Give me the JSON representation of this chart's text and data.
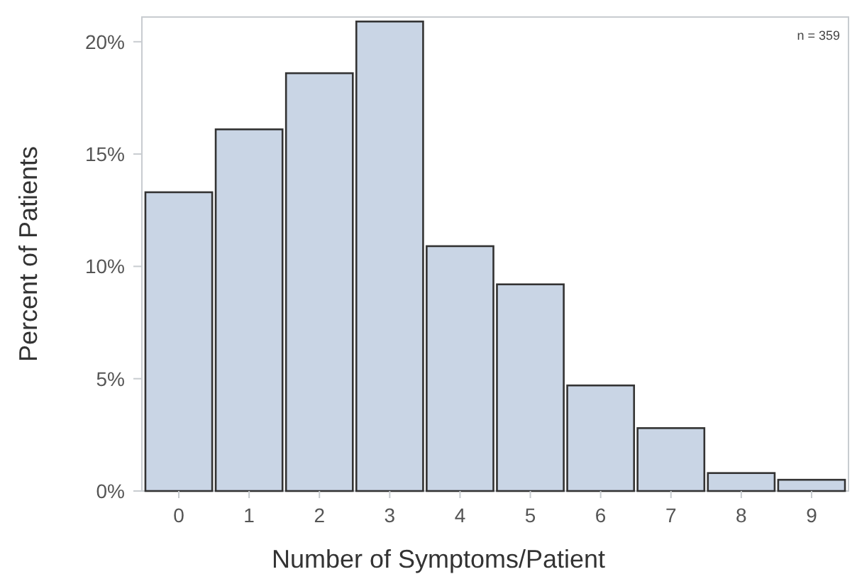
{
  "chart_data": {
    "type": "bar",
    "xlabel": "Number of Symptoms/Patient",
    "ylabel": "Percent of Patients",
    "categories": [
      "0",
      "1",
      "2",
      "3",
      "4",
      "5",
      "6",
      "7",
      "8",
      "9"
    ],
    "values": [
      13.3,
      16.1,
      18.6,
      20.9,
      10.9,
      9.2,
      4.7,
      2.8,
      0.8,
      0.5
    ],
    "color": "#c9d5e5",
    "ylim": [
      0,
      21.1
    ],
    "yticks": [
      {
        "value": 0,
        "label": "0%"
      },
      {
        "value": 5,
        "label": "5%"
      },
      {
        "value": 10,
        "label": "10%"
      },
      {
        "value": 15,
        "label": "15%"
      },
      {
        "value": 20,
        "label": "20%"
      }
    ],
    "grid": false,
    "annotations": [
      "n = 359"
    ]
  }
}
